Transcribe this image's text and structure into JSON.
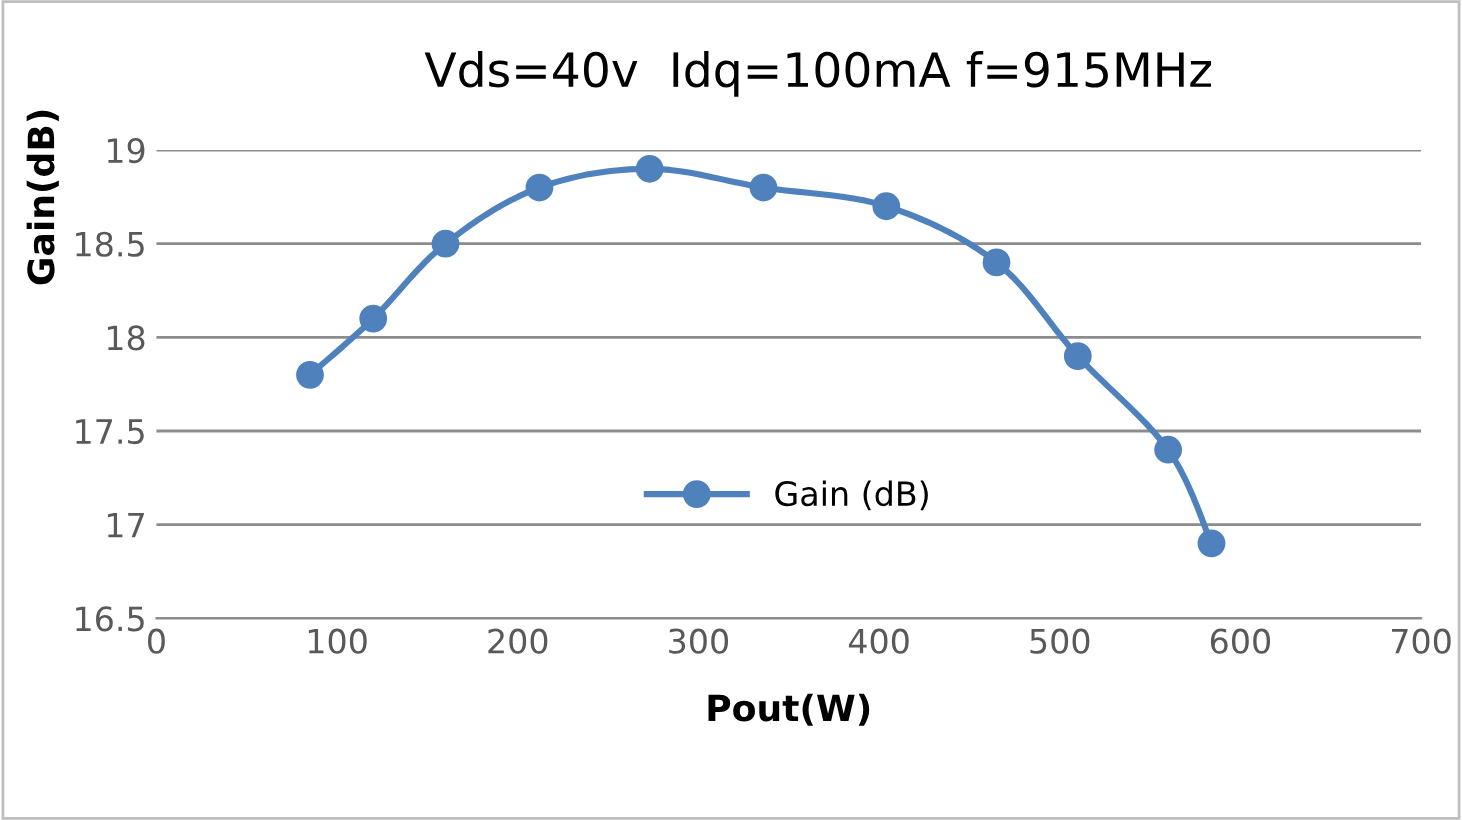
{
  "chart_data": {
    "type": "line",
    "title": "Vds=40v  Idq=100mA f=915MHz",
    "xlabel": "Pout(W)",
    "ylabel": "Gain(dB)",
    "x": [
      85,
      120,
      160,
      212,
      273,
      336,
      404,
      465,
      510,
      560,
      584
    ],
    "series": [
      {
        "name": "Gain (dB)",
        "color": "#4f81bd",
        "values": [
          17.8,
          18.1,
          18.5,
          18.8,
          18.9,
          18.8,
          18.7,
          18.4,
          17.9,
          17.4,
          16.9
        ]
      }
    ],
    "xlim": [
      0,
      700
    ],
    "xticks": [
      0,
      100,
      200,
      300,
      400,
      500,
      600,
      700
    ],
    "ylim": [
      16.5,
      19
    ],
    "yticks": [
      16.5,
      17,
      17.5,
      18,
      18.5,
      19
    ],
    "grid": "y",
    "legend": "center",
    "marker": "circle",
    "line_style": "solid"
  }
}
